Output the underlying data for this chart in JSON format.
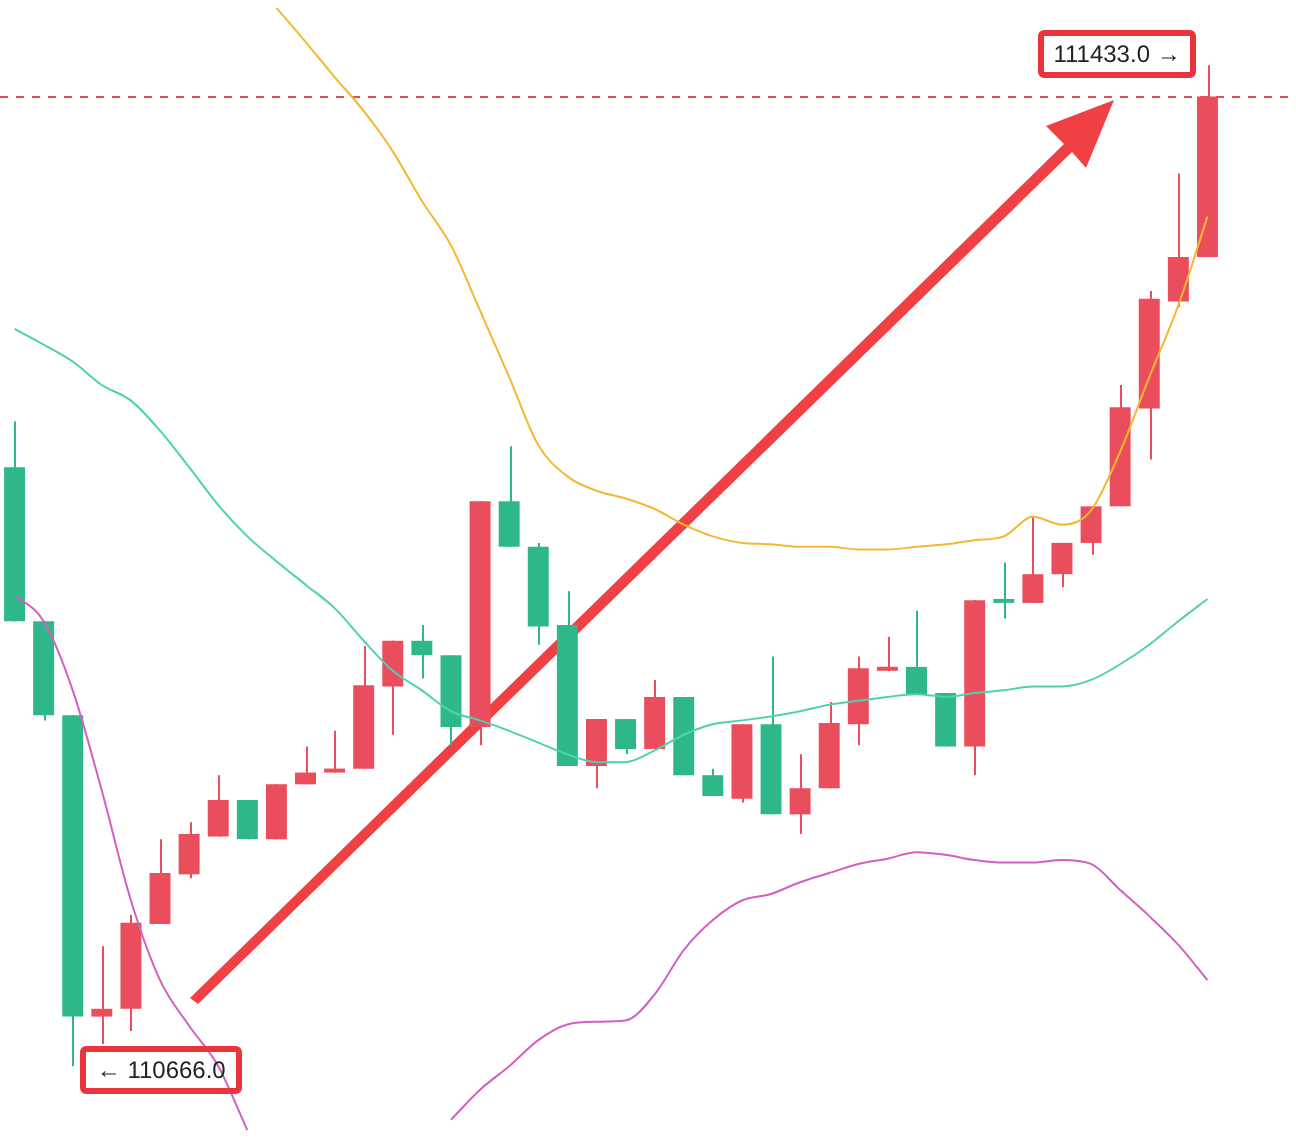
{
  "chart_data": {
    "type": "candlestick",
    "categories": [
      null,
      null,
      null,
      null,
      null,
      null,
      null,
      null,
      null,
      null,
      null,
      null,
      null,
      null,
      null,
      null,
      null,
      null,
      null,
      null,
      null,
      null,
      null,
      null,
      null,
      null,
      null,
      null,
      null,
      null,
      null,
      null,
      null,
      null,
      null,
      null,
      null,
      null,
      null,
      null,
      null,
      null
    ],
    "ohlc": [
      [
        111125,
        111160,
        111007,
        111007
      ],
      [
        111007,
        111007,
        110931,
        110935
      ],
      [
        110935,
        110935,
        110666,
        110704
      ],
      [
        110704,
        110758,
        110683,
        110710
      ],
      [
        110710,
        110782,
        110693,
        110776
      ],
      [
        110775,
        110840,
        110775,
        110814
      ],
      [
        110813,
        110853,
        110810,
        110844
      ],
      [
        110842,
        110889,
        110842,
        110870
      ],
      [
        110870,
        110870,
        110840,
        110840
      ],
      [
        110840,
        110882,
        110840,
        110882
      ],
      [
        110882,
        110911,
        110882,
        110891
      ],
      [
        110891,
        110923,
        110891,
        110894
      ],
      [
        110894,
        110988,
        110894,
        110958
      ],
      [
        110957,
        110992,
        110920,
        110992
      ],
      [
        110992,
        111004,
        110963,
        110981
      ],
      [
        110981,
        110981,
        110912,
        110926
      ],
      [
        110926,
        111099,
        110912,
        111099
      ],
      [
        111099,
        111141,
        111064,
        111064
      ],
      [
        111064,
        111067,
        110989,
        111003
      ],
      [
        111004,
        111030,
        110896,
        110896
      ],
      [
        110896,
        110932,
        110879,
        110932
      ],
      [
        110932,
        110932,
        110905,
        110909
      ],
      [
        110909,
        110962,
        110909,
        110949
      ],
      [
        110949,
        110949,
        110889,
        110889
      ],
      [
        110889,
        110894,
        110873,
        110873
      ],
      [
        110871,
        110928,
        110868,
        110928
      ],
      [
        110928,
        110980,
        110859,
        110859
      ],
      [
        110859,
        110905,
        110844,
        110879
      ],
      [
        110879,
        110945,
        110879,
        110929
      ],
      [
        110928,
        110980,
        110912,
        110971
      ],
      [
        110969,
        110995,
        110969,
        110972
      ],
      [
        110972,
        111015,
        110951,
        110951
      ],
      [
        110952,
        110952,
        110911,
        110911
      ],
      [
        110911,
        111023,
        110889,
        111023
      ],
      [
        111023,
        111052,
        111009,
        111021
      ],
      [
        111021,
        111087,
        111021,
        111043
      ],
      [
        111043,
        111067,
        111033,
        111067
      ],
      [
        111067,
        111095,
        111058,
        111095
      ],
      [
        111095,
        111188,
        111095,
        111171
      ],
      [
        111170,
        111260,
        111131,
        111254
      ],
      [
        111252,
        111350,
        111248,
        111286
      ],
      [
        111286,
        111433,
        111286,
        111409
      ]
    ],
    "colors": [
      "#2eb88a",
      "#2eb88a",
      "#2eb88a",
      "#ea4d5b",
      "#ea4d5b",
      "#ea4d5b",
      "#ea4d5b",
      "#ea4d5b",
      "#2eb88a",
      "#ea4d5b",
      "#ea4d5b",
      "#ea4d5b",
      "#ea4d5b",
      "#ea4d5b",
      "#2eb88a",
      "#2eb88a",
      "#ea4d5b",
      "#2eb88a",
      "#2eb88a",
      "#2eb88a",
      "#ea4d5b",
      "#2eb88a",
      "#ea4d5b",
      "#2eb88a",
      "#2eb88a",
      "#ea4d5b",
      "#2eb88a",
      "#ea4d5b",
      "#ea4d5b",
      "#ea4d5b",
      "#ea4d5b",
      "#2eb88a",
      "#2eb88a",
      "#ea4d5b",
      "#2eb88a",
      "#ea4d5b",
      "#ea4d5b",
      "#ea4d5b",
      "#ea4d5b",
      "#ea4d5b",
      "#ea4d5b",
      "#ea4d5b"
    ],
    "series": [
      {
        "type": "line",
        "color": "#f5b731",
        "values": [
          null,
          null,
          null,
          null,
          null,
          null,
          null,
          null,
          null,
          111477,
          111451,
          111424,
          111398,
          111367,
          111329,
          111295,
          111245,
          111194,
          111142,
          111118,
          111107,
          111101,
          111093,
          111081,
          111072,
          111067,
          111066,
          111064,
          111064,
          111062,
          111062,
          111064,
          111066,
          111069,
          111072,
          111087,
          111081,
          111092,
          111137,
          111194,
          111249,
          111317
        ]
      },
      {
        "type": "line",
        "color": "#4fd1b0",
        "values": [
          111231,
          111219,
          111206,
          111188,
          111176,
          111153,
          111125,
          111096,
          111072,
          111053,
          111035,
          111017,
          110992,
          110969,
          110954,
          110938,
          110931,
          110923,
          110914,
          110905,
          110899,
          110899,
          110908,
          110920,
          110928,
          110931,
          110934,
          110938,
          110943,
          110946,
          110949,
          110951,
          110949,
          110952,
          110954,
          110957,
          110957,
          110962,
          110974,
          110989,
          111007,
          111024
        ]
      },
      {
        "type": "line",
        "color": "#d45fc2",
        "values": [
          111027,
          111007,
          110954,
          110877,
          110793,
          110732,
          110697,
          110666,
          110617,
          null,
          null,
          null,
          null,
          null,
          null,
          110625,
          110648,
          110666,
          110686,
          110698,
          110700,
          110701,
          110721,
          110755,
          110778,
          110793,
          110798,
          110807,
          110814,
          110821,
          110825,
          110830,
          110828,
          110824,
          110822,
          110822,
          110824,
          110821,
          110801,
          110781,
          110759,
          110732
        ]
      }
    ],
    "tick_labels": false,
    "ref_lines": [
      {
        "axis": "y",
        "value": 111409,
        "color": "#e0505a",
        "line_style": "dashed"
      }
    ],
    "annotations": [
      "111433.0 →",
      "← 110666.0"
    ]
  }
}
